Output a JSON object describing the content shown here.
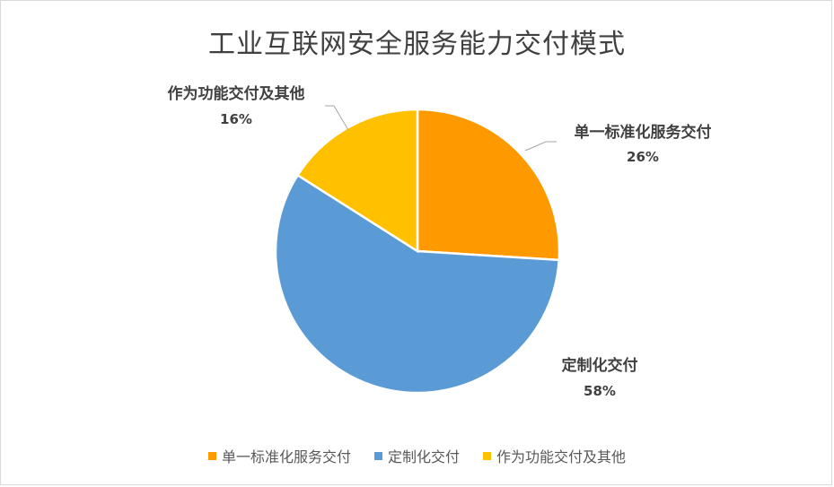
{
  "chart_data": {
    "type": "pie",
    "title": "工业互联网安全服务能力交付模式",
    "categories": [
      "单一标准化服务交付",
      "定制化交付",
      "作为功能交付及其他"
    ],
    "values": [
      26,
      58,
      16
    ],
    "value_labels": [
      "26%",
      "58%",
      "16%"
    ],
    "colors": [
      "#FF9900",
      "#5B9BD5",
      "#FFC000"
    ],
    "legend_position": "bottom"
  }
}
